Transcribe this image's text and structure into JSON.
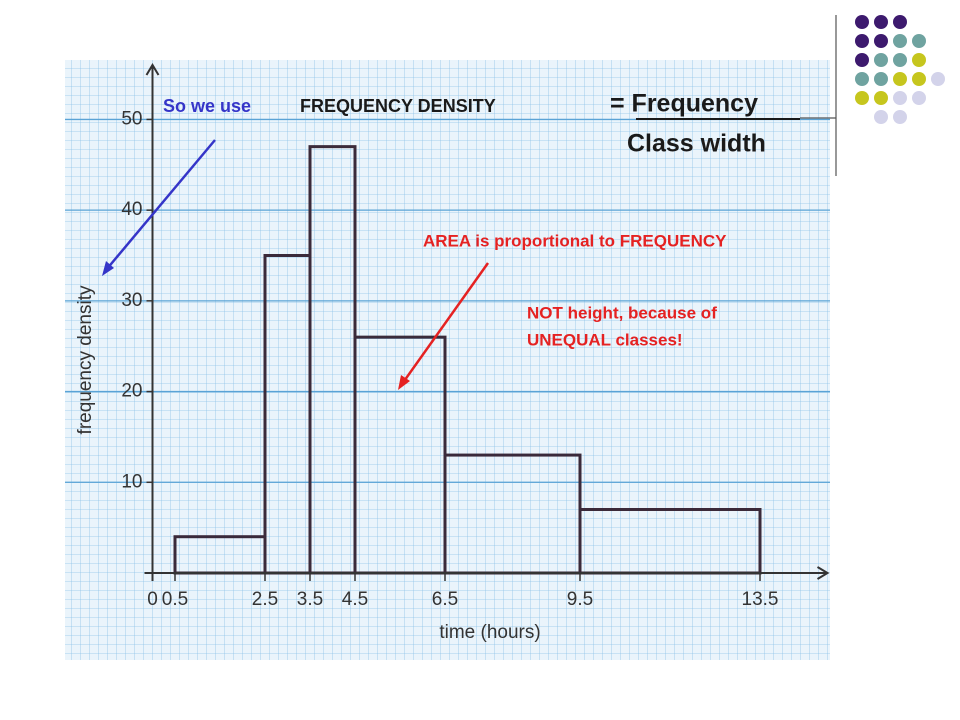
{
  "chart_data": {
    "type": "histogram",
    "bins": [
      0.5,
      2.5,
      3.5,
      4.5,
      6.5,
      9.5,
      13.5
    ],
    "values": [
      4,
      35,
      47,
      26,
      13,
      7
    ],
    "color": "#3a2a3a",
    "xlabel": "time (hours)",
    "ylabel": "frequency density",
    "xlim": [
      0,
      15
    ],
    "ylim": [
      0,
      56
    ],
    "xticks": [
      0,
      0.5,
      2.5,
      3.5,
      4.5,
      6.5,
      9.5,
      13.5
    ],
    "yticks": [
      10,
      20,
      30,
      40,
      50
    ],
    "annotations": [
      {
        "text": "So we use",
        "color": "#3535c8"
      },
      {
        "text": "FREQUENCY DENSITY",
        "color": "#1a1a1a"
      },
      {
        "text": "= Frequency",
        "color": "#1a1a1a"
      },
      {
        "text": "Class width",
        "color": "#1a1a1a"
      },
      {
        "text": "AREA is proportional to FREQUENCY",
        "color": "#e52222"
      },
      {
        "text": "NOT height, because of",
        "color": "#e52222"
      },
      {
        "text": "UNEQUAL classes!",
        "color": "#e52222"
      }
    ]
  }
}
